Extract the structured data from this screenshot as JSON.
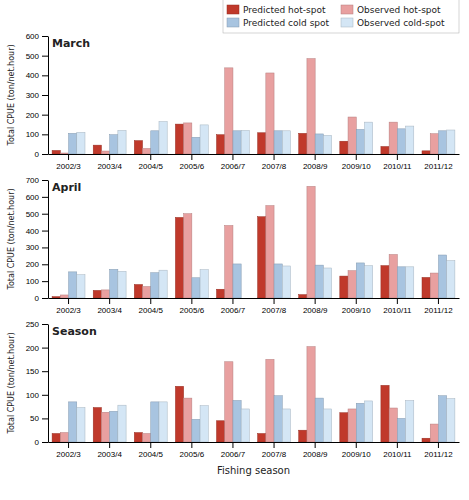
{
  "chart_data": [
    {
      "type": "bar",
      "title": "March",
      "categories": [
        "2002/3",
        "2003/4",
        "2004/5",
        "2005/6",
        "2006/7",
        "2007/8",
        "2008/9",
        "2009/10",
        "2010/11",
        "2011/12"
      ],
      "series": [
        {
          "name": "Predicted hot-spot",
          "color": "#c0392b",
          "values": [
            18,
            45,
            68,
            152,
            98,
            108,
            105,
            65,
            38,
            16
          ]
        },
        {
          "name": "Observed hot-spot",
          "color": "#e8a0a0",
          "values": [
            5,
            15,
            28,
            158,
            438,
            412,
            485,
            188,
            162,
            103
          ]
        },
        {
          "name": "Predicted cold spot",
          "color": "#a8c4e0",
          "values": [
            105,
            98,
            118,
            85,
            118,
            118,
            102,
            125,
            128,
            118
          ]
        },
        {
          "name": "Observed cold-spot",
          "color": "#d4e6f5",
          "values": [
            110,
            120,
            165,
            148,
            120,
            118,
            95,
            162,
            142,
            122
          ]
        }
      ],
      "ylabel": "Total CPUE (ton/net.hour)",
      "ylim": [
        0,
        600
      ],
      "yticks": [
        0,
        100,
        200,
        300,
        400,
        500,
        600
      ],
      "grid": false,
      "legend": "upper right"
    },
    {
      "type": "bar",
      "title": "April",
      "categories": [
        "2002/3",
        "2003/4",
        "2004/5",
        "2005/6",
        "2006/7",
        "2007/8",
        "2008/9",
        "2009/10",
        "2010/11",
        "2011/12"
      ],
      "series": [
        {
          "name": "Predicted hot-spot",
          "color": "#c0392b",
          "values": [
            8,
            45,
            80,
            478,
            52,
            482,
            20,
            130,
            192,
            122
          ]
        },
        {
          "name": "Observed hot-spot",
          "color": "#e8a0a0",
          "values": [
            18,
            48,
            68,
            500,
            430,
            548,
            662,
            162,
            258,
            148
          ]
        },
        {
          "name": "Predicted cold spot",
          "color": "#a8c4e0",
          "values": [
            155,
            170,
            150,
            120,
            202,
            202,
            195,
            208,
            185,
            255
          ]
        },
        {
          "name": "Observed cold-spot",
          "color": "#d4e6f5",
          "values": [
            138,
            158,
            165,
            168,
            0,
            190,
            178,
            192,
            185,
            222
          ]
        }
      ],
      "ylabel": "Total CPUE (ton/net.hour)",
      "ylim": [
        0,
        700
      ],
      "yticks": [
        0,
        100,
        200,
        300,
        400,
        500,
        600,
        700
      ],
      "grid": false
    },
    {
      "type": "bar",
      "title": "Season",
      "categories": [
        "2002/3",
        "2003/4",
        "2004/5",
        "2005/6",
        "2006/7",
        "2007/8",
        "2008/9",
        "2009/10",
        "2010/11",
        "2011/12"
      ],
      "series": [
        {
          "name": "Predicted hot-spot",
          "color": "#c0392b",
          "values": [
            18,
            73,
            20,
            118,
            45,
            18,
            25,
            62,
            120,
            8
          ]
        },
        {
          "name": "Observed hot-spot",
          "color": "#e8a0a0",
          "values": [
            20,
            63,
            18,
            93,
            170,
            175,
            202,
            70,
            72,
            38
          ]
        },
        {
          "name": "Predicted cold spot",
          "color": "#a8c4e0",
          "values": [
            85,
            65,
            85,
            48,
            88,
            98,
            93,
            82,
            50,
            98
          ]
        },
        {
          "name": "Observed cold-spot",
          "color": "#d4e6f5",
          "values": [
            73,
            78,
            85,
            77,
            70,
            70,
            70,
            87,
            88,
            92
          ]
        }
      ],
      "xlabel": "Fishing season",
      "ylabel": "Total CPUE (ton/net.hour)",
      "ylim": [
        0,
        250
      ],
      "yticks": [
        0,
        50,
        100,
        150,
        200,
        250
      ],
      "grid": false
    }
  ]
}
